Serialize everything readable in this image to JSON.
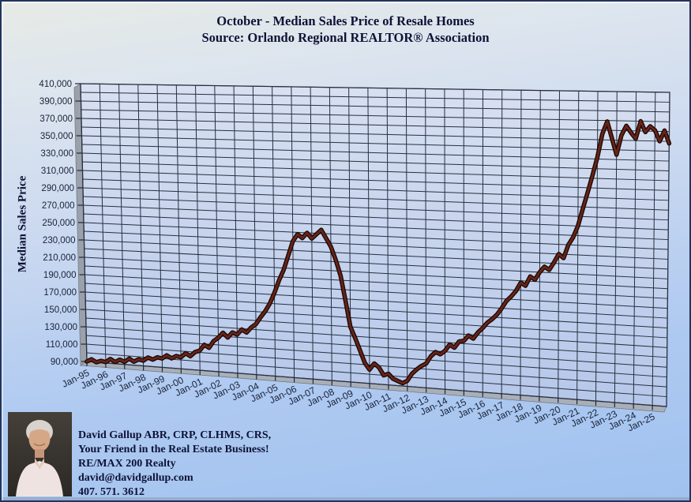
{
  "title": {
    "line1": "October - Median Sales Price of Resale Homes",
    "line2": "Source: Orlando Regional REALTOR® Association"
  },
  "colors": {
    "line_core": "#682418",
    "line_edge": "#1c0a06",
    "grid_line": "#27303e",
    "wall_top": "#d8e0f1",
    "wall_bottom": "#b5c7ea",
    "side_wall": "#9aa1ab",
    "floor": "#a9afb8",
    "text_dark_navy": "#0d1335",
    "tick_text": "#182238"
  },
  "chart_data": {
    "type": "line",
    "title": "October - Median Sales Price of Resale Homes",
    "subtitle": "Source: Orlando Regional REALTOR® Association",
    "xlabel": "",
    "ylabel": "Median Sales Price",
    "ylim": [
      90000,
      410000
    ],
    "y_tick_step": 20000,
    "y_minor_grid_step": 10000,
    "y_ticks": [
      90000,
      110000,
      130000,
      150000,
      170000,
      190000,
      210000,
      230000,
      250000,
      270000,
      290000,
      310000,
      330000,
      350000,
      370000,
      390000,
      410000
    ],
    "x_tick_labels": [
      "Jan-95",
      "Jan-96",
      "Jan-97",
      "Jan-98",
      "Jan-99",
      "Jan-00",
      "Jan-01",
      "Jan-02",
      "Jan-03",
      "Jan-04",
      "Jan-05",
      "Jan-06",
      "Jan-07",
      "Jan-08",
      "Jan-09",
      "Jan-10",
      "Jan-11",
      "Jan-12",
      "Jan-13",
      "Jan-14",
      "Jan-15",
      "Jan-16",
      "Jan-17",
      "Jan-18",
      "Jan-19",
      "Jan-20",
      "Jan-21",
      "Jan-22",
      "Jan-23",
      "Jan-24",
      "Jan-25"
    ],
    "x_start": "Jan-1995",
    "x_end": "Oct-2025",
    "x_grid_every_months": 12,
    "legend": "none",
    "grid": true,
    "series": [
      {
        "name": "Median Sales Price",
        "sample_interval_months": 3,
        "values_usd": [
          90000,
          93000,
          90000,
          92000,
          91000,
          95000,
          92000,
          95000,
          93000,
          97000,
          94000,
          97000,
          96000,
          100000,
          98000,
          101000,
          100000,
          104000,
          101000,
          104000,
          103000,
          108000,
          105000,
          110000,
          112000,
          119000,
          116000,
          124000,
          128000,
          134000,
          129000,
          135000,
          133000,
          139000,
          136000,
          142000,
          146000,
          154000,
          161000,
          170000,
          182000,
          196000,
          208000,
          224000,
          240000,
          248000,
          244000,
          250000,
          244000,
          249000,
          254000,
          245000,
          236000,
          222000,
          205000,
          178000,
          150000,
          138000,
          125000,
          112000,
          105000,
          112000,
          108000,
          100000,
          102000,
          97000,
          95000,
          93000,
          96000,
          104000,
          109000,
          113000,
          116000,
          124000,
          129000,
          127000,
          131000,
          138000,
          135000,
          142000,
          143000,
          149000,
          146000,
          153000,
          158000,
          164000,
          168000,
          173000,
          180000,
          188000,
          193000,
          199000,
          208000,
          205000,
          215000,
          212000,
          220000,
          226000,
          223000,
          231000,
          240000,
          236000,
          250000,
          258000,
          270000,
          288000,
          305000,
          323000,
          342000,
          366000,
          379000,
          362000,
          345000,
          365000,
          375000,
          368000,
          362000,
          380000,
          369000,
          375000,
          371000,
          360000,
          371000,
          358000
        ]
      }
    ]
  },
  "contact": {
    "lines": [
      "David Gallup  ABR, CRP, CLHMS, CRS,",
      "Your Friend in the Real Estate Business!",
      "RE/MAX 200 Realty",
      "david@davidgallup.com",
      "407. 571. 3612"
    ]
  },
  "photo": {
    "description": "Portrait photo of David Gallup"
  }
}
